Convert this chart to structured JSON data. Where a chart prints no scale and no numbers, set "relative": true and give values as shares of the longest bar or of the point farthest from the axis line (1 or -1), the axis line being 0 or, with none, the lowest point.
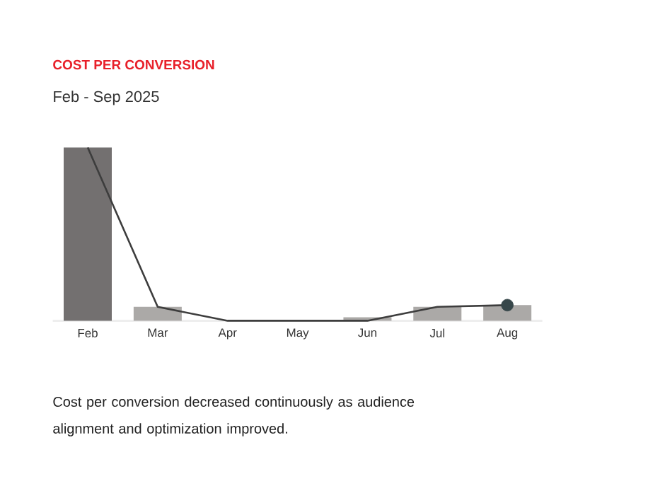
{
  "chart_data": {
    "type": "bar",
    "title": "COST PER CONVERSION",
    "subtitle": "Feb - Sep 2025",
    "categories": [
      "Feb",
      "Mar",
      "Apr",
      "May",
      "Jun",
      "Jul",
      "Aug"
    ],
    "relative": true,
    "series": [
      {
        "colors": [
          "#737070",
          "#aba9a7",
          "#aba9a7",
          "#aba9a7",
          "#aba9a7",
          "#aba9a7",
          "#aba9a7"
        ],
        "values": [
          1,
          0.08,
          0,
          0,
          0.02,
          0.08,
          0.09
        ]
      },
      {
        "type": "line",
        "color": "#3d3d3d",
        "marker": "none",
        "values": [
          1,
          0.08,
          0,
          0,
          0,
          0.08,
          0.09
        ]
      },
      {
        "type": "scatter",
        "color": "#37474a",
        "marker": "circle",
        "values": [
          null,
          null,
          null,
          null,
          null,
          null,
          0.09
        ]
      }
    ],
    "annotations": [
      "Cost per conversion decreased continuously as audience alignment and optimization improved."
    ]
  }
}
